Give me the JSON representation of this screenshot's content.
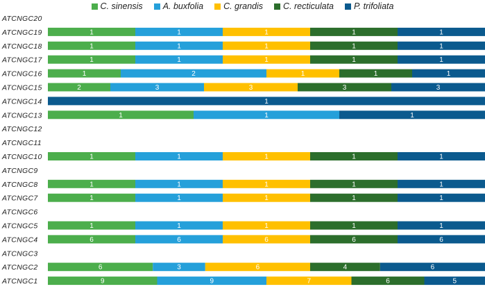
{
  "chart_data": {
    "type": "bar",
    "orientation": "horizontal",
    "stacked": "percent",
    "title": "",
    "xlabel": "",
    "ylabel": "",
    "legend_position": "top",
    "show_values": true,
    "series": [
      {
        "name": "C. sinensis",
        "color": "#4cae4c",
        "values": [
          0,
          1,
          1,
          1,
          1,
          2,
          0,
          1,
          0,
          0,
          1,
          0,
          1,
          1,
          0,
          1,
          6,
          0,
          6,
          9
        ]
      },
      {
        "name": "A. buxfolia",
        "color": "#25a0da",
        "values": [
          0,
          1,
          1,
          1,
          2,
          3,
          0,
          1,
          0,
          0,
          1,
          0,
          1,
          1,
          0,
          1,
          6,
          0,
          3,
          9
        ]
      },
      {
        "name": "C. grandis",
        "color": "#ffc000",
        "values": [
          0,
          1,
          1,
          1,
          1,
          3,
          0,
          0,
          0,
          0,
          1,
          0,
          1,
          1,
          0,
          1,
          6,
          0,
          6,
          7
        ]
      },
      {
        "name": "C. recticulata",
        "color": "#2c6e2c",
        "values": [
          0,
          1,
          1,
          1,
          1,
          3,
          0,
          0,
          0,
          0,
          1,
          0,
          1,
          1,
          0,
          1,
          6,
          0,
          4,
          6
        ]
      },
      {
        "name": "P. trifoliata",
        "color": "#0b5a8e",
        "values": [
          0,
          1,
          1,
          1,
          1,
          3,
          1,
          1,
          0,
          0,
          1,
          0,
          1,
          1,
          0,
          1,
          6,
          0,
          6,
          5
        ]
      }
    ],
    "categories": [
      "ATCNGC20",
      "ATCNGC19",
      "ATCNGC18",
      "ATCNGC17",
      "ATCNGC16",
      "ATCNGC15",
      "ATCNGC14",
      "ATCNGC13",
      "ATCNGC12",
      "ATCNGC11",
      "ATCNGC10",
      "ATCNGC9",
      "ATCNGC8",
      "ATCNGC7",
      "ATCNGC6",
      "ATCNGC5",
      "ATCNGC4",
      "ATCNGC3",
      "ATCNGC2",
      "ATCNGC1"
    ]
  }
}
